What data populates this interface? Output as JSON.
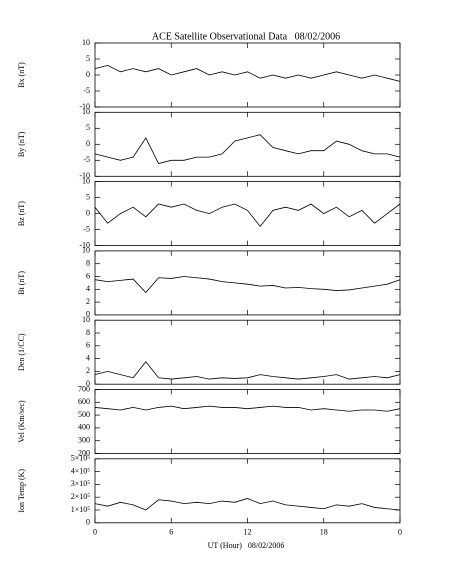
{
  "chart_data": [
    {
      "type": "line",
      "title": "ACE Satellite Observational Data   08/02/2006",
      "ylabel": "Bx (nT)",
      "color": "#000000",
      "xlim": [
        0,
        24
      ],
      "ylim": [
        -10,
        10
      ],
      "yticks": [
        -10,
        -5,
        0,
        5,
        10
      ],
      "x": [
        0,
        1,
        2,
        3,
        4,
        5,
        6,
        7,
        8,
        9,
        10,
        11,
        12,
        13,
        14,
        15,
        16,
        17,
        18,
        19,
        20,
        21,
        22,
        23,
        24
      ],
      "values": [
        2,
        3,
        1,
        2,
        1,
        2,
        0,
        1,
        2,
        0,
        1,
        0,
        1,
        -1,
        0,
        -1,
        0,
        -1,
        0,
        1,
        0,
        -1,
        0,
        -1,
        -2
      ]
    },
    {
      "type": "line",
      "ylabel": "By (nT)",
      "color": "#000000",
      "xlim": [
        0,
        24
      ],
      "ylim": [
        -10,
        10
      ],
      "yticks": [
        -10,
        -5,
        0,
        5,
        10
      ],
      "x": [
        0,
        1,
        2,
        3,
        4,
        5,
        6,
        7,
        8,
        9,
        10,
        11,
        12,
        13,
        14,
        15,
        16,
        17,
        18,
        19,
        20,
        21,
        22,
        23,
        24
      ],
      "values": [
        -3,
        -4,
        -5,
        -4,
        2,
        -6,
        -5,
        -5,
        -4,
        -4,
        -3,
        1,
        2,
        3,
        -1,
        -2,
        -3,
        -2,
        -2,
        1,
        0,
        -2,
        -3,
        -3,
        -4
      ]
    },
    {
      "type": "line",
      "ylabel": "Bz (nT)",
      "color": "#000000",
      "xlim": [
        0,
        24
      ],
      "ylim": [
        -10,
        10
      ],
      "yticks": [
        -10,
        -5,
        0,
        5,
        10
      ],
      "x": [
        0,
        1,
        2,
        3,
        4,
        5,
        6,
        7,
        8,
        9,
        10,
        11,
        12,
        13,
        14,
        15,
        16,
        17,
        18,
        19,
        20,
        21,
        22,
        23,
        24
      ],
      "values": [
        2,
        -3,
        0,
        2,
        -1,
        3,
        2,
        3,
        1,
        0,
        2,
        3,
        1,
        -4,
        1,
        2,
        1,
        3,
        0,
        2,
        -1,
        1,
        -3,
        0,
        3
      ]
    },
    {
      "type": "line",
      "ylabel": "Bt (nT)",
      "color": "#000000",
      "xlim": [
        0,
        24
      ],
      "ylim": [
        0,
        10
      ],
      "yticks": [
        0,
        2,
        4,
        6,
        8,
        10
      ],
      "x": [
        0,
        1,
        2,
        3,
        4,
        5,
        6,
        7,
        8,
        9,
        10,
        11,
        12,
        13,
        14,
        15,
        16,
        17,
        18,
        19,
        20,
        21,
        22,
        23,
        24
      ],
      "values": [
        5.5,
        5.2,
        5.4,
        5.6,
        3.5,
        5.8,
        5.7,
        6,
        5.8,
        5.6,
        5.2,
        5,
        4.8,
        4.5,
        4.6,
        4.2,
        4.3,
        4.1,
        4,
        3.8,
        3.9,
        4.2,
        4.5,
        4.8,
        5.5
      ]
    },
    {
      "type": "line",
      "ylabel": "Den (1/CC)",
      "color": "#000000",
      "xlim": [
        0,
        24
      ],
      "ylim": [
        0,
        10
      ],
      "yticks": [
        0,
        2,
        4,
        6,
        8,
        10
      ],
      "x": [
        0,
        1,
        2,
        3,
        4,
        5,
        6,
        7,
        8,
        9,
        10,
        11,
        12,
        13,
        14,
        15,
        16,
        17,
        18,
        19,
        20,
        21,
        22,
        23,
        24
      ],
      "values": [
        1.5,
        2,
        1.5,
        1,
        3.5,
        1,
        0.8,
        1,
        1.2,
        0.8,
        1,
        0.9,
        1,
        1.5,
        1.2,
        1,
        0.8,
        1,
        1.2,
        1.5,
        0.8,
        1,
        1.2,
        1,
        1.5
      ]
    },
    {
      "type": "line",
      "ylabel": "Vel (Km/sec)",
      "color": "#000000",
      "xlim": [
        0,
        24
      ],
      "ylim": [
        200,
        700
      ],
      "yticks": [
        200,
        300,
        400,
        500,
        600,
        700
      ],
      "x": [
        0,
        1,
        2,
        3,
        4,
        5,
        6,
        7,
        8,
        9,
        10,
        11,
        12,
        13,
        14,
        15,
        16,
        17,
        18,
        19,
        20,
        21,
        22,
        23,
        24
      ],
      "values": [
        560,
        550,
        540,
        560,
        540,
        560,
        570,
        550,
        560,
        570,
        560,
        560,
        550,
        560,
        570,
        560,
        560,
        540,
        550,
        540,
        530,
        540,
        540,
        530,
        550
      ]
    },
    {
      "type": "line",
      "ylabel": "Ion Temp (K)",
      "xlabel": "UT (Hour)   08/02/2006",
      "color": "#000000",
      "xlim": [
        0,
        24
      ],
      "xticks": [
        0,
        6,
        12,
        18,
        {
          "value": 24,
          "label": "0"
        }
      ],
      "ylim": [
        0,
        500000
      ],
      "yticks": [
        0,
        {
          "value": 100000,
          "label": "1×10⁵"
        },
        {
          "value": 200000,
          "label": "2×10⁵"
        },
        {
          "value": 300000,
          "label": "3×10⁵"
        },
        {
          "value": 400000,
          "label": "4×10⁵"
        },
        {
          "value": 500000,
          "label": "5×10⁵"
        }
      ],
      "x": [
        0,
        1,
        2,
        3,
        4,
        5,
        6,
        7,
        8,
        9,
        10,
        11,
        12,
        13,
        14,
        15,
        16,
        17,
        18,
        19,
        20,
        21,
        22,
        23,
        24
      ],
      "values": [
        150000,
        130000,
        160000,
        140000,
        100000,
        180000,
        170000,
        150000,
        160000,
        150000,
        170000,
        160000,
        190000,
        150000,
        170000,
        140000,
        130000,
        120000,
        110000,
        140000,
        130000,
        150000,
        120000,
        110000,
        100000
      ]
    }
  ]
}
